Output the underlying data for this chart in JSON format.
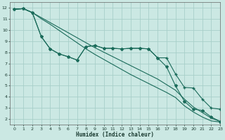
{
  "xlabel": "Humidex (Indice chaleur)",
  "background_color": "#cbe8e3",
  "grid_color": "#a8cfc9",
  "line_color": "#1a6b5a",
  "xlim": [
    -0.5,
    23
  ],
  "ylim": [
    1.5,
    12.5
  ],
  "xticks": [
    0,
    1,
    2,
    3,
    4,
    5,
    6,
    7,
    8,
    9,
    10,
    11,
    12,
    13,
    14,
    15,
    16,
    17,
    18,
    19,
    20,
    21,
    22,
    23
  ],
  "yticks": [
    2,
    3,
    4,
    5,
    6,
    7,
    8,
    9,
    10,
    11,
    12
  ],
  "line1_x": [
    0,
    1,
    2,
    3,
    4,
    5,
    6,
    7,
    8,
    9,
    10,
    11,
    12,
    13,
    14,
    15,
    16,
    17,
    18,
    19,
    20,
    21,
    22,
    23
  ],
  "line1_y": [
    11.85,
    11.9,
    11.55,
    11.1,
    10.65,
    10.2,
    9.75,
    9.3,
    8.85,
    8.4,
    8.0,
    7.6,
    7.2,
    6.8,
    6.4,
    6.0,
    5.6,
    5.1,
    4.6,
    3.8,
    3.1,
    2.6,
    2.1,
    1.8
  ],
  "line2_x": [
    0,
    1,
    2,
    3,
    4,
    5,
    6,
    7,
    8,
    9,
    10,
    11,
    12,
    13,
    14,
    15,
    16,
    17,
    18,
    19,
    20,
    21,
    22,
    23
  ],
  "line2_y": [
    11.85,
    11.9,
    11.55,
    11.0,
    10.5,
    9.95,
    9.4,
    8.85,
    8.3,
    7.8,
    7.35,
    6.9,
    6.45,
    6.0,
    5.6,
    5.2,
    4.8,
    4.4,
    3.95,
    3.2,
    2.65,
    2.2,
    1.85,
    1.75
  ],
  "line3_x": [
    0,
    1,
    2,
    3,
    4,
    5,
    6,
    7,
    8,
    9,
    10,
    11,
    12,
    13,
    14,
    15,
    16,
    17,
    18,
    19,
    20,
    21,
    22,
    23
  ],
  "line3_y": [
    11.85,
    11.9,
    11.55,
    9.4,
    8.3,
    7.85,
    7.6,
    7.3,
    8.5,
    8.6,
    8.35,
    8.35,
    8.3,
    8.35,
    8.35,
    8.3,
    7.5,
    7.5,
    6.05,
    4.85,
    4.8,
    3.8,
    3.0,
    2.9
  ],
  "line4_x": [
    0,
    1,
    2,
    3,
    4,
    5,
    6,
    7,
    8,
    9,
    10,
    11,
    12,
    13,
    14,
    15,
    16,
    17,
    18,
    19,
    20,
    21,
    22,
    23
  ],
  "line4_y": [
    11.85,
    11.9,
    11.55,
    9.4,
    8.3,
    7.85,
    7.6,
    7.3,
    8.5,
    8.6,
    8.35,
    8.35,
    8.3,
    8.35,
    8.35,
    8.3,
    7.5,
    6.7,
    5.0,
    3.6,
    2.9,
    2.8,
    2.2,
    1.8
  ]
}
